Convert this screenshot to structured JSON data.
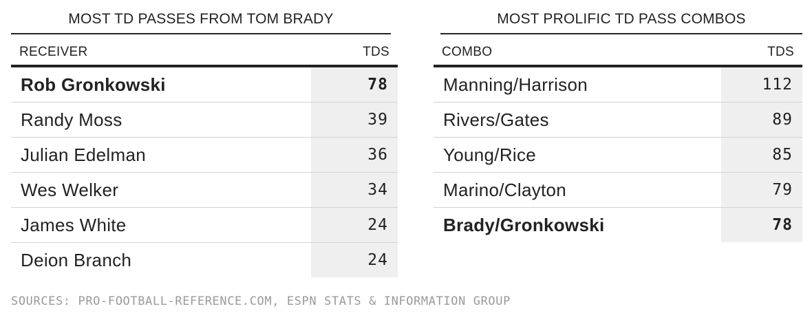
{
  "left_table": {
    "title": "MOST TD PASSES FROM TOM BRADY",
    "columns": {
      "name": "RECEIVER",
      "value": "TDS"
    },
    "rows": [
      {
        "name": "Rob Gronkowski",
        "tds": "78",
        "highlight": true
      },
      {
        "name": "Randy Moss",
        "tds": "39",
        "highlight": false
      },
      {
        "name": "Julian Edelman",
        "tds": "36",
        "highlight": false
      },
      {
        "name": "Wes Welker",
        "tds": "34",
        "highlight": false
      },
      {
        "name": "James White",
        "tds": "24",
        "highlight": false
      },
      {
        "name": "Deion Branch",
        "tds": "24",
        "highlight": false
      }
    ]
  },
  "right_table": {
    "title": "MOST PROLIFIC TD PASS COMBOS",
    "columns": {
      "name": "COMBO",
      "value": "TDS"
    },
    "rows": [
      {
        "name": "Manning/Harrison",
        "tds": "112",
        "highlight": false
      },
      {
        "name": "Rivers/Gates",
        "tds": "89",
        "highlight": false
      },
      {
        "name": "Young/Rice",
        "tds": "85",
        "highlight": false
      },
      {
        "name": "Marino/Clayton",
        "tds": "79",
        "highlight": false
      },
      {
        "name": "Brady/Gronkowski",
        "tds": "78",
        "highlight": true
      }
    ]
  },
  "footer": {
    "sources": "SOURCES: PRO-FOOTBALL-REFERENCE.COM, ESPN STATS & INFORMATION GROUP"
  },
  "colors": {
    "text": "#222222",
    "value_cell_background": "#efefef",
    "row_divider": "#d3d3d3",
    "sources_text": "#9a9a9a"
  }
}
